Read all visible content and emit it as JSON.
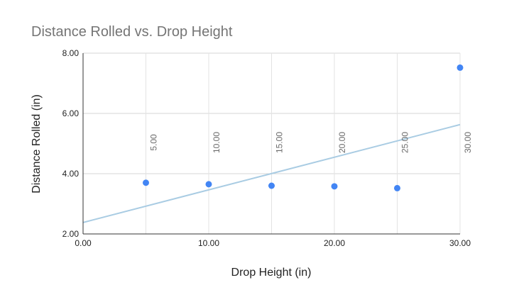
{
  "chart_data": {
    "type": "scatter",
    "title": "Distance Rolled vs. Drop Height",
    "xlabel": "Drop Height (in)",
    "ylabel": "Distance Rolled (in)",
    "xlim": [
      0,
      30
    ],
    "ylim": [
      2,
      8
    ],
    "x_ticks": [
      "0.00",
      "10.00",
      "20.00",
      "30.00"
    ],
    "y_ticks": [
      "2.00",
      "4.00",
      "6.00",
      "8.00"
    ],
    "grid": true,
    "legend": "none",
    "series": [
      {
        "x": [
          5,
          10,
          15,
          20,
          25,
          30
        ],
        "y": [
          3.7,
          3.65,
          3.6,
          3.58,
          3.52,
          7.52
        ],
        "data_labels": [
          "5.00",
          "10.00",
          "15.00",
          "20.00",
          "25.00",
          "30.00"
        ],
        "color": "#4285f4"
      }
    ],
    "trendline": {
      "type": "linear",
      "color": "#a9cce3",
      "x": [
        0,
        30
      ],
      "y": [
        2.38,
        5.63
      ]
    }
  }
}
